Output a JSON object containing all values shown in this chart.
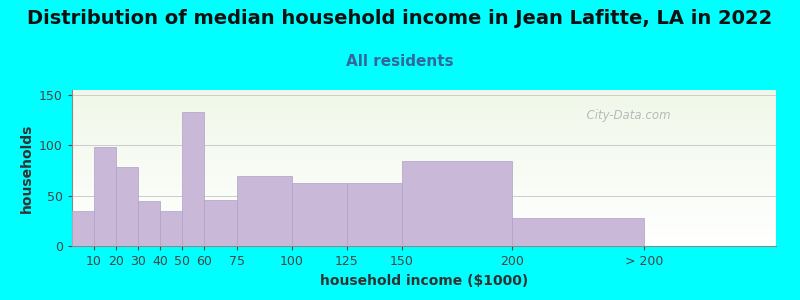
{
  "title": "Distribution of median household income in Jean Lafitte, LA in 2022",
  "subtitle": "All residents",
  "xlabel": "household income ($1000)",
  "ylabel": "households",
  "background_color": "#00FFFF",
  "bar_color": "#c9b8d8",
  "bar_edge_color": "#b0a0c8",
  "categories": [
    "10",
    "20",
    "30",
    "40",
    "50",
    "60",
    "75",
    "100",
    "125",
    "150",
    "200",
    "> 200"
  ],
  "values": [
    35,
    98,
    78,
    45,
    35,
    133,
    46,
    70,
    63,
    63,
    84,
    28
  ],
  "left_edges": [
    0,
    10,
    20,
    30,
    40,
    50,
    60,
    75,
    100,
    125,
    150,
    200
  ],
  "widths": [
    10,
    10,
    10,
    10,
    10,
    10,
    15,
    25,
    25,
    25,
    50,
    60
  ],
  "ylim": [
    0,
    155
  ],
  "yticks": [
    0,
    50,
    100,
    150
  ],
  "title_fontsize": 14,
  "subtitle_fontsize": 11,
  "axis_label_fontsize": 10,
  "tick_fontsize": 9,
  "watermark": "  City-Data.com"
}
